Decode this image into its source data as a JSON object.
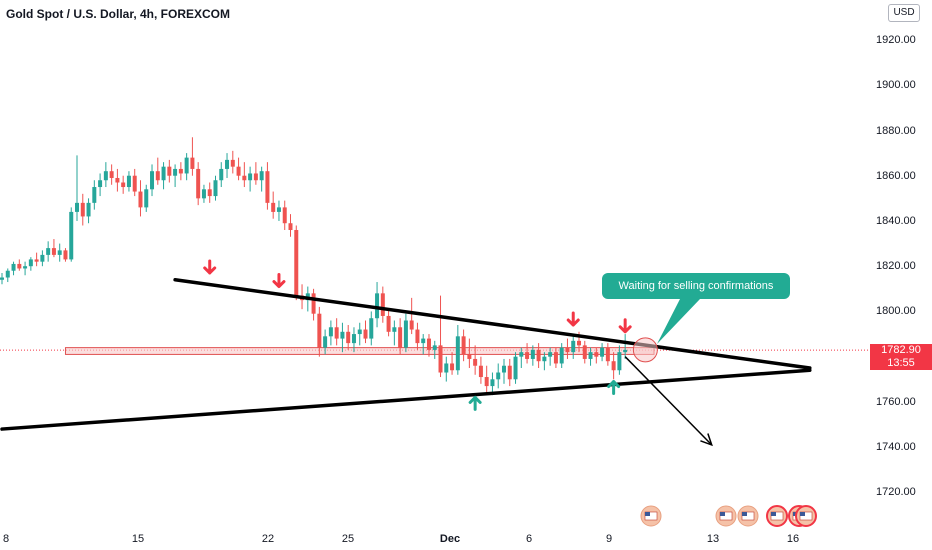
{
  "header": {
    "title": "Gold Spot / U.S. Dollar, 4h, FOREXCOM",
    "currency": "USD"
  },
  "price_tag": {
    "price": "1782.90",
    "countdown": "13:55"
  },
  "annotation": {
    "text": "Waiting for selling confirmations"
  },
  "colors": {
    "up": "#26a69a",
    "down": "#ef5350",
    "line": "#000000",
    "zone_fill": "#f8c8c8",
    "zone_stroke": "#e05050",
    "callout": "#22ab94",
    "price_line": "#f23645"
  },
  "chart_data": {
    "type": "candlestick",
    "title": "Gold Spot / U.S. Dollar, 4h, FOREXCOM",
    "y_axis": {
      "ticks": [
        "1920.00",
        "1900.00",
        "1880.00",
        "1860.00",
        "1840.00",
        "1820.00",
        "1800.00",
        "1780.00",
        "1760.00",
        "1740.00",
        "1720.00"
      ],
      "range": [
        1710,
        1930
      ]
    },
    "x_axis": {
      "ticks": [
        "8",
        "15",
        "22",
        "25",
        "Dec",
        "6",
        "9",
        "13",
        "16"
      ]
    },
    "last_price": 1782.9,
    "trendlines": [
      {
        "name": "descending-resistance",
        "from": [
          30,
          1814
        ],
        "to": [
          140,
          1775
        ]
      },
      {
        "name": "ascending-support",
        "from": [
          0,
          1748
        ],
        "to": [
          140,
          1774
        ]
      },
      {
        "name": "projection-arrow",
        "from": [
          108,
          1780
        ],
        "to": [
          123,
          1741
        ]
      }
    ],
    "zone": {
      "from": 11,
      "to": 113,
      "low": 1781,
      "high": 1784
    },
    "markers": {
      "sell": [
        {
          "x": 36,
          "y": 1817
        },
        {
          "x": 48,
          "y": 1811
        },
        {
          "x": 99,
          "y": 1794
        },
        {
          "x": 108,
          "y": 1791
        }
      ],
      "buy": [
        {
          "x": 82,
          "y": 1762
        },
        {
          "x": 106,
          "y": 1769
        }
      ]
    },
    "candles": [
      {
        "o": 1814,
        "h": 1817,
        "l": 1812,
        "c": 1815
      },
      {
        "o": 1815,
        "h": 1819,
        "l": 1813,
        "c": 1818
      },
      {
        "o": 1818,
        "h": 1822,
        "l": 1816,
        "c": 1821
      },
      {
        "o": 1821,
        "h": 1823,
        "l": 1818,
        "c": 1819
      },
      {
        "o": 1819,
        "h": 1822,
        "l": 1816,
        "c": 1820
      },
      {
        "o": 1820,
        "h": 1824,
        "l": 1818,
        "c": 1823
      },
      {
        "o": 1823,
        "h": 1826,
        "l": 1820,
        "c": 1822
      },
      {
        "o": 1822,
        "h": 1827,
        "l": 1820,
        "c": 1825
      },
      {
        "o": 1825,
        "h": 1831,
        "l": 1822,
        "c": 1828
      },
      {
        "o": 1828,
        "h": 1832,
        "l": 1824,
        "c": 1825
      },
      {
        "o": 1825,
        "h": 1830,
        "l": 1822,
        "c": 1827
      },
      {
        "o": 1827,
        "h": 1828,
        "l": 1822,
        "c": 1823
      },
      {
        "o": 1823,
        "h": 1846,
        "l": 1822,
        "c": 1844
      },
      {
        "o": 1844,
        "h": 1869,
        "l": 1840,
        "c": 1848
      },
      {
        "o": 1848,
        "h": 1852,
        "l": 1838,
        "c": 1842
      },
      {
        "o": 1842,
        "h": 1850,
        "l": 1839,
        "c": 1848
      },
      {
        "o": 1848,
        "h": 1858,
        "l": 1845,
        "c": 1855
      },
      {
        "o": 1855,
        "h": 1861,
        "l": 1851,
        "c": 1858
      },
      {
        "o": 1858,
        "h": 1866,
        "l": 1855,
        "c": 1862
      },
      {
        "o": 1862,
        "h": 1865,
        "l": 1856,
        "c": 1859
      },
      {
        "o": 1859,
        "h": 1863,
        "l": 1853,
        "c": 1857
      },
      {
        "o": 1857,
        "h": 1860,
        "l": 1852,
        "c": 1855
      },
      {
        "o": 1855,
        "h": 1862,
        "l": 1853,
        "c": 1860
      },
      {
        "o": 1860,
        "h": 1863,
        "l": 1851,
        "c": 1853
      },
      {
        "o": 1853,
        "h": 1858,
        "l": 1842,
        "c": 1846
      },
      {
        "o": 1846,
        "h": 1856,
        "l": 1844,
        "c": 1854
      },
      {
        "o": 1854,
        "h": 1865,
        "l": 1851,
        "c": 1862
      },
      {
        "o": 1862,
        "h": 1868,
        "l": 1856,
        "c": 1858
      },
      {
        "o": 1858,
        "h": 1866,
        "l": 1854,
        "c": 1864
      },
      {
        "o": 1864,
        "h": 1867,
        "l": 1857,
        "c": 1860
      },
      {
        "o": 1860,
        "h": 1865,
        "l": 1855,
        "c": 1863
      },
      {
        "o": 1863,
        "h": 1866,
        "l": 1858,
        "c": 1861
      },
      {
        "o": 1861,
        "h": 1870,
        "l": 1858,
        "c": 1868
      },
      {
        "o": 1868,
        "h": 1877,
        "l": 1860,
        "c": 1863
      },
      {
        "o": 1863,
        "h": 1866,
        "l": 1847,
        "c": 1850
      },
      {
        "o": 1850,
        "h": 1856,
        "l": 1848,
        "c": 1854
      },
      {
        "o": 1854,
        "h": 1857,
        "l": 1848,
        "c": 1851
      },
      {
        "o": 1851,
        "h": 1860,
        "l": 1849,
        "c": 1858
      },
      {
        "o": 1858,
        "h": 1866,
        "l": 1855,
        "c": 1863
      },
      {
        "o": 1863,
        "h": 1870,
        "l": 1859,
        "c": 1867
      },
      {
        "o": 1867,
        "h": 1871,
        "l": 1861,
        "c": 1864
      },
      {
        "o": 1864,
        "h": 1868,
        "l": 1858,
        "c": 1860
      },
      {
        "o": 1860,
        "h": 1866,
        "l": 1855,
        "c": 1858
      },
      {
        "o": 1858,
        "h": 1864,
        "l": 1853,
        "c": 1861
      },
      {
        "o": 1861,
        "h": 1866,
        "l": 1856,
        "c": 1858
      },
      {
        "o": 1858,
        "h": 1864,
        "l": 1853,
        "c": 1862
      },
      {
        "o": 1862,
        "h": 1866,
        "l": 1845,
        "c": 1848
      },
      {
        "o": 1848,
        "h": 1853,
        "l": 1841,
        "c": 1844
      },
      {
        "o": 1844,
        "h": 1849,
        "l": 1840,
        "c": 1846
      },
      {
        "o": 1846,
        "h": 1849,
        "l": 1836,
        "c": 1839
      },
      {
        "o": 1839,
        "h": 1843,
        "l": 1833,
        "c": 1836
      },
      {
        "o": 1836,
        "h": 1838,
        "l": 1805,
        "c": 1807
      },
      {
        "o": 1807,
        "h": 1812,
        "l": 1801,
        "c": 1805
      },
      {
        "o": 1805,
        "h": 1811,
        "l": 1800,
        "c": 1808
      },
      {
        "o": 1808,
        "h": 1810,
        "l": 1796,
        "c": 1799
      },
      {
        "o": 1799,
        "h": 1802,
        "l": 1780,
        "c": 1784
      },
      {
        "o": 1784,
        "h": 1792,
        "l": 1781,
        "c": 1789
      },
      {
        "o": 1789,
        "h": 1796,
        "l": 1785,
        "c": 1793
      },
      {
        "o": 1793,
        "h": 1797,
        "l": 1785,
        "c": 1788
      },
      {
        "o": 1788,
        "h": 1795,
        "l": 1782,
        "c": 1791
      },
      {
        "o": 1791,
        "h": 1794,
        "l": 1783,
        "c": 1786
      },
      {
        "o": 1786,
        "h": 1793,
        "l": 1782,
        "c": 1790
      },
      {
        "o": 1790,
        "h": 1795,
        "l": 1785,
        "c": 1792
      },
      {
        "o": 1792,
        "h": 1796,
        "l": 1786,
        "c": 1788
      },
      {
        "o": 1788,
        "h": 1800,
        "l": 1785,
        "c": 1797
      },
      {
        "o": 1797,
        "h": 1813,
        "l": 1793,
        "c": 1808
      },
      {
        "o": 1808,
        "h": 1811,
        "l": 1795,
        "c": 1798
      },
      {
        "o": 1798,
        "h": 1801,
        "l": 1789,
        "c": 1791
      },
      {
        "o": 1791,
        "h": 1796,
        "l": 1785,
        "c": 1793
      },
      {
        "o": 1793,
        "h": 1797,
        "l": 1781,
        "c": 1784
      },
      {
        "o": 1784,
        "h": 1799,
        "l": 1782,
        "c": 1796
      },
      {
        "o": 1796,
        "h": 1806,
        "l": 1790,
        "c": 1792
      },
      {
        "o": 1792,
        "h": 1795,
        "l": 1783,
        "c": 1786
      },
      {
        "o": 1786,
        "h": 1790,
        "l": 1781,
        "c": 1788
      },
      {
        "o": 1788,
        "h": 1790,
        "l": 1780,
        "c": 1783
      },
      {
        "o": 1783,
        "h": 1787,
        "l": 1779,
        "c": 1785
      },
      {
        "o": 1785,
        "h": 1807,
        "l": 1771,
        "c": 1773
      },
      {
        "o": 1773,
        "h": 1780,
        "l": 1769,
        "c": 1777
      },
      {
        "o": 1777,
        "h": 1782,
        "l": 1772,
        "c": 1774
      },
      {
        "o": 1774,
        "h": 1794,
        "l": 1772,
        "c": 1789
      },
      {
        "o": 1789,
        "h": 1792,
        "l": 1778,
        "c": 1781
      },
      {
        "o": 1781,
        "h": 1788,
        "l": 1775,
        "c": 1779
      },
      {
        "o": 1779,
        "h": 1785,
        "l": 1772,
        "c": 1776
      },
      {
        "o": 1776,
        "h": 1780,
        "l": 1768,
        "c": 1771
      },
      {
        "o": 1771,
        "h": 1776,
        "l": 1764,
        "c": 1767
      },
      {
        "o": 1767,
        "h": 1773,
        "l": 1763,
        "c": 1770
      },
      {
        "o": 1770,
        "h": 1777,
        "l": 1766,
        "c": 1773
      },
      {
        "o": 1773,
        "h": 1779,
        "l": 1768,
        "c": 1776
      },
      {
        "o": 1776,
        "h": 1779,
        "l": 1767,
        "c": 1770
      },
      {
        "o": 1770,
        "h": 1782,
        "l": 1768,
        "c": 1780
      },
      {
        "o": 1780,
        "h": 1784,
        "l": 1775,
        "c": 1782
      },
      {
        "o": 1782,
        "h": 1786,
        "l": 1777,
        "c": 1779
      },
      {
        "o": 1779,
        "h": 1785,
        "l": 1776,
        "c": 1783
      },
      {
        "o": 1783,
        "h": 1786,
        "l": 1775,
        "c": 1778
      },
      {
        "o": 1778,
        "h": 1782,
        "l": 1774,
        "c": 1780
      },
      {
        "o": 1780,
        "h": 1784,
        "l": 1776,
        "c": 1782
      },
      {
        "o": 1782,
        "h": 1784,
        "l": 1775,
        "c": 1777
      },
      {
        "o": 1777,
        "h": 1786,
        "l": 1775,
        "c": 1784
      },
      {
        "o": 1784,
        "h": 1788,
        "l": 1779,
        "c": 1782
      },
      {
        "o": 1782,
        "h": 1789,
        "l": 1779,
        "c": 1787
      },
      {
        "o": 1787,
        "h": 1791,
        "l": 1782,
        "c": 1785
      },
      {
        "o": 1785,
        "h": 1787,
        "l": 1777,
        "c": 1779
      },
      {
        "o": 1779,
        "h": 1784,
        "l": 1776,
        "c": 1782
      },
      {
        "o": 1782,
        "h": 1784,
        "l": 1777,
        "c": 1780
      },
      {
        "o": 1780,
        "h": 1786,
        "l": 1778,
        "c": 1784
      },
      {
        "o": 1784,
        "h": 1786,
        "l": 1776,
        "c": 1778
      },
      {
        "o": 1778,
        "h": 1782,
        "l": 1770,
        "c": 1774
      },
      {
        "o": 1774,
        "h": 1785,
        "l": 1772,
        "c": 1782
      },
      {
        "o": 1782,
        "h": 1790,
        "l": 1779,
        "c": 1783
      }
    ]
  }
}
